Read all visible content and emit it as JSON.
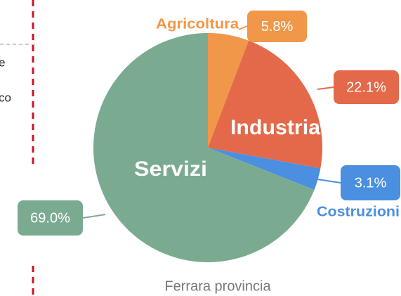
{
  "sidebar": {
    "lines": [
      "e",
      "co"
    ]
  },
  "chart_data": {
    "type": "pie",
    "categories": [
      "Agricoltura",
      "Industria",
      "Costruzioni",
      "Servizi"
    ],
    "values": [
      5.8,
      22.1,
      3.1,
      69.0
    ],
    "value_labels": [
      "5.8%",
      "22.1%",
      "3.1%",
      "69.0%"
    ],
    "colors": [
      "#f0974a",
      "#e4694a",
      "#4a8fe0",
      "#7aab91"
    ],
    "caption": "Ferrara provincia"
  }
}
